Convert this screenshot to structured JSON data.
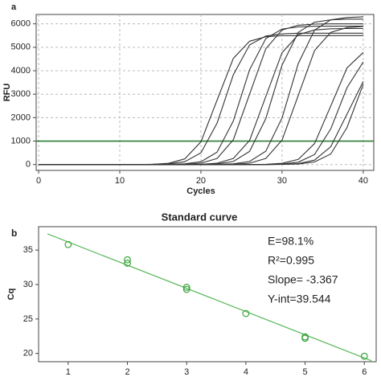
{
  "chart_data": [
    {
      "type": "line",
      "panel_label": "a",
      "xlabel": "Cycles",
      "ylabel": "RFU",
      "x": [
        0,
        2,
        4,
        6,
        8,
        10,
        12,
        14,
        16,
        18,
        20,
        22,
        24,
        26,
        28,
        30,
        32,
        34,
        36,
        38,
        40
      ],
      "series": [
        {
          "color": "#333333",
          "values": [
            0,
            0,
            0,
            0,
            0,
            0,
            0,
            10,
            50,
            240,
            970,
            2750,
            4530,
            5260,
            5450,
            5490,
            5500,
            5500,
            5500,
            5500,
            5500
          ]
        },
        {
          "color": "#333333",
          "values": [
            0,
            0,
            0,
            0,
            0,
            0,
            0,
            10,
            30,
            120,
            500,
            1770,
            3830,
            5100,
            5480,
            5570,
            5600,
            5600,
            5600,
            5600,
            5600
          ]
        },
        {
          "color": "#333333",
          "values": [
            0,
            0,
            0,
            0,
            0,
            0,
            0,
            0,
            10,
            30,
            120,
            530,
            1860,
            4040,
            5370,
            5780,
            5870,
            5900,
            5900,
            5900,
            5900
          ]
        },
        {
          "color": "#333333",
          "values": [
            0,
            0,
            0,
            0,
            0,
            0,
            0,
            0,
            0,
            10,
            60,
            260,
            1060,
            3000,
            4940,
            5740,
            5940,
            5990,
            6000,
            6000,
            6000
          ]
        },
        {
          "color": "#333333",
          "values": [
            0,
            0,
            0,
            0,
            0,
            0,
            0,
            0,
            0,
            0,
            10,
            60,
            260,
            1030,
            2900,
            4770,
            5540,
            5740,
            5790,
            5800,
            5800
          ]
        },
        {
          "color": "#333333",
          "values": [
            0,
            0,
            0,
            0,
            0,
            0,
            0,
            0,
            0,
            0,
            10,
            30,
            130,
            560,
            1960,
            4240,
            5640,
            6070,
            6170,
            6200,
            6200
          ]
        },
        {
          "color": "#333333",
          "values": [
            0,
            0,
            0,
            0,
            0,
            0,
            0,
            0,
            0,
            0,
            0,
            10,
            30,
            130,
            570,
            1990,
            4310,
            5730,
            6170,
            6270,
            6300
          ]
        },
        {
          "color": "#333333",
          "values": [
            0,
            0,
            0,
            0,
            0,
            0,
            0,
            0,
            0,
            0,
            0,
            0,
            10,
            60,
            260,
            1040,
            2950,
            4860,
            5640,
            5840,
            5890
          ]
        },
        {
          "color": "#333333",
          "values": [
            0,
            0,
            0,
            0,
            0,
            0,
            0,
            0,
            0,
            0,
            0,
            0,
            0,
            0,
            10,
            50,
            220,
            890,
            2500,
            4120,
            4780
          ]
        },
        {
          "color": "#333333",
          "values": [
            0,
            0,
            0,
            0,
            0,
            0,
            0,
            0,
            0,
            0,
            0,
            0,
            0,
            0,
            0,
            20,
            100,
            430,
            1520,
            3280,
            4370
          ]
        },
        {
          "color": "#333333",
          "values": [
            0,
            0,
            0,
            0,
            0,
            0,
            0,
            0,
            0,
            0,
            0,
            0,
            0,
            0,
            0,
            10,
            20,
            110,
            450,
            1580,
            3420
          ]
        },
        {
          "color": "#333333",
          "values": [
            0,
            0,
            0,
            0,
            0,
            0,
            0,
            0,
            0,
            0,
            0,
            0,
            0,
            0,
            0,
            10,
            40,
            190,
            760,
            2150,
            3540
          ]
        }
      ],
      "threshold": {
        "value": 1000,
        "color": "#2e7d32"
      },
      "xlim": [
        -0.3,
        41.3
      ],
      "xticks": [
        0,
        10,
        20,
        30,
        40
      ],
      "ylim": [
        -250,
        6400
      ],
      "yticks": [
        0,
        1000,
        2000,
        3000,
        4000,
        5000,
        6000
      ],
      "grid": true
    },
    {
      "type": "scatter",
      "title": "Standard curve",
      "panel_label": "b",
      "ylabel": "Cq",
      "x": [
        1,
        2,
        2,
        3,
        3,
        4,
        5,
        5,
        6
      ],
      "y": [
        35.8,
        33.6,
        33.1,
        29.6,
        29.3,
        25.8,
        22.4,
        22.2,
        19.6
      ],
      "color": "#3aa53a",
      "fit": {
        "slope": -3.367,
        "intercept": 39.544,
        "color": "#5cb85c"
      },
      "annotations": [
        "E=98.1%",
        "R²=0.995",
        "Slope= -3.367",
        "Y-int=39.544"
      ],
      "xlim": [
        0.5,
        6.2
      ],
      "xticks": [
        1,
        2,
        3,
        4,
        5,
        6
      ],
      "ylim": [
        18.8,
        38.4
      ],
      "yticks": [
        20,
        25,
        30,
        35
      ],
      "grid": false
    }
  ]
}
